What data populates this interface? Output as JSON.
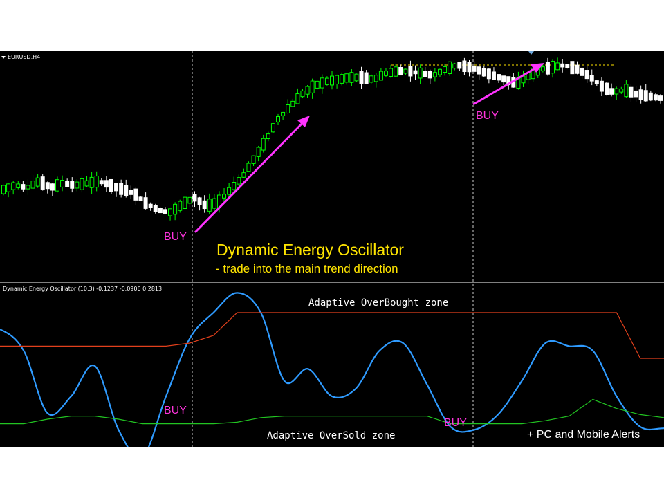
{
  "symbol_label": "EURUSD,H4",
  "indicator_label": "Dynamic Energy Oscillator (10,3) -0.1237 -0.0906 0.2813",
  "headline": "Dynamic Energy Oscillator",
  "subheadline": "- trade into the main trend direction",
  "overbought_label": "Adaptive OverBought zone",
  "oversold_label": "Adaptive OverSold zone",
  "alerts_label": "+ PC and Mobile Alerts",
  "buy_label": "BUY",
  "colors": {
    "background": "#000000",
    "bull_candle": "#00ff00",
    "bear_candle": "#ffffff",
    "oscillator": "#2f9bff",
    "overbought_line": "#e2401c",
    "oversold_line": "#22c422",
    "arrow": "#ff33ff",
    "annotation": "#ffe500"
  },
  "chart_data": [
    {
      "type": "candlestick",
      "title": "EURUSD,H4",
      "price_path": [
        40,
        42,
        41,
        44,
        41,
        43,
        42,
        43,
        44,
        42,
        40,
        38,
        33,
        30,
        29,
        33,
        36,
        32,
        34,
        40,
        46,
        55,
        64,
        74,
        80,
        86,
        90,
        92,
        93,
        94,
        94,
        93,
        96,
        97,
        97,
        96,
        95,
        98,
        100,
        99,
        97,
        95,
        93,
        91,
        95,
        98,
        99,
        100,
        98,
        95,
        90,
        87,
        88,
        86,
        85,
        84
      ],
      "buy_signals_at": [
        17,
        44
      ]
    },
    {
      "type": "line",
      "title": "Dynamic Energy Oscillator (10,3) -0.1237 -0.0906 0.2813",
      "series": [
        {
          "name": "oscillator",
          "values": [
            0.74,
            0.6,
            0.19,
            0.3,
            0.5,
            0.08,
            -0.1,
            0.3,
            0.68,
            0.85,
            0.98,
            0.85,
            0.4,
            0.48,
            0.3,
            0.35,
            0.6,
            0.65,
            0.38,
            0.1,
            0.08,
            0.18,
            0.4,
            0.65,
            0.63,
            0.6,
            0.3,
            0.1,
            0.09
          ]
        },
        {
          "name": "overbought",
          "values": [
            0.63,
            0.63,
            0.63,
            0.63,
            0.63,
            0.63,
            0.63,
            0.63,
            0.65,
            0.7,
            0.85,
            0.85,
            0.85,
            0.85,
            0.85,
            0.85,
            0.85,
            0.85,
            0.85,
            0.85,
            0.85,
            0.85,
            0.85,
            0.85,
            0.85,
            0.85,
            0.85,
            0.55,
            0.55
          ]
        },
        {
          "name": "oversold",
          "values": [
            0.12,
            0.12,
            0.15,
            0.17,
            0.17,
            0.15,
            0.12,
            0.12,
            0.12,
            0.12,
            0.13,
            0.16,
            0.17,
            0.17,
            0.17,
            0.17,
            0.17,
            0.17,
            0.17,
            0.12,
            0.12,
            0.12,
            0.12,
            0.14,
            0.17,
            0.28,
            0.22,
            0.18,
            0.16
          ]
        }
      ]
    }
  ]
}
